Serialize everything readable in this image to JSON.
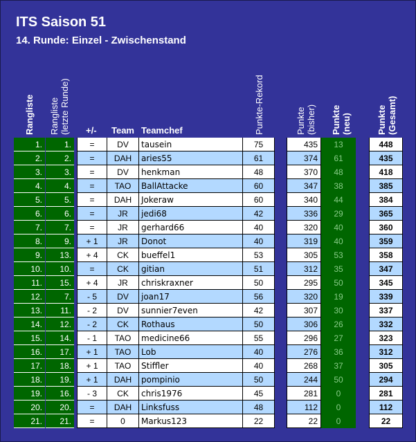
{
  "title": "ITS Saison 51",
  "subtitle": "14. Runde: Einzel - Zwischenstand",
  "headers": {
    "rangliste": "Rangliste",
    "rangliste_letzte": "Rangliste",
    "rangliste_letzte_sub": "(letzte Runde)",
    "plusminus": "+/-",
    "team": "Team",
    "teamchef": "Teamchef",
    "punkte_rekord": "Punkte-Rekord",
    "punkte_bisher": "Punkte",
    "punkte_bisher_sub": "(bisher)",
    "punkte_neu": "Punkte",
    "punkte_neu_sub": "(neu)",
    "punkte_gesamt": "Punkte",
    "punkte_gesamt_sub": "(Gesamt)"
  },
  "colors": {
    "background": "#333399",
    "green": "#006600",
    "row_blue": "#b3d9ff",
    "row_white": "#ffffff"
  },
  "rows": [
    {
      "rank": "1.",
      "prev": "1.",
      "change": "=",
      "team": "DV",
      "chef": "tausein",
      "record": "75",
      "prior": "435",
      "new": "13",
      "total": "448"
    },
    {
      "rank": "2.",
      "prev": "2.",
      "change": "=",
      "team": "DAH",
      "chef": "aries55",
      "record": "61",
      "prior": "374",
      "new": "61",
      "total": "435"
    },
    {
      "rank": "3.",
      "prev": "3.",
      "change": "=",
      "team": "DV",
      "chef": "henkman",
      "record": "48",
      "prior": "370",
      "new": "48",
      "total": "418"
    },
    {
      "rank": "4.",
      "prev": "4.",
      "change": "=",
      "team": "TAO",
      "chef": "BallAttacke",
      "record": "60",
      "prior": "347",
      "new": "38",
      "total": "385"
    },
    {
      "rank": "5.",
      "prev": "5.",
      "change": "=",
      "team": "DAH",
      "chef": "Jokeraw",
      "record": "60",
      "prior": "340",
      "new": "44",
      "total": "384"
    },
    {
      "rank": "6.",
      "prev": "6.",
      "change": "=",
      "team": "JR",
      "chef": "jedi68",
      "record": "42",
      "prior": "336",
      "new": "29",
      "total": "365"
    },
    {
      "rank": "7.",
      "prev": "7.",
      "change": "=",
      "team": "JR",
      "chef": "gerhard66",
      "record": "40",
      "prior": "320",
      "new": "40",
      "total": "360"
    },
    {
      "rank": "8.",
      "prev": "9.",
      "change": "+ 1",
      "team": "JR",
      "chef": "Donot",
      "record": "40",
      "prior": "319",
      "new": "40",
      "total": "359"
    },
    {
      "rank": "9.",
      "prev": "13.",
      "change": "+ 4",
      "team": "CK",
      "chef": "bueffel1",
      "record": "53",
      "prior": "305",
      "new": "53",
      "total": "358"
    },
    {
      "rank": "10.",
      "prev": "10.",
      "change": "=",
      "team": "CK",
      "chef": "gitian",
      "record": "51",
      "prior": "312",
      "new": "35",
      "total": "347"
    },
    {
      "rank": "11.",
      "prev": "15.",
      "change": "+ 4",
      "team": "JR",
      "chef": "chriskraxner",
      "record": "50",
      "prior": "295",
      "new": "50",
      "total": "345"
    },
    {
      "rank": "12.",
      "prev": "7.",
      "change": "- 5",
      "team": "DV",
      "chef": "joan17",
      "record": "56",
      "prior": "320",
      "new": "19",
      "total": "339"
    },
    {
      "rank": "13.",
      "prev": "11.",
      "change": "- 2",
      "team": "DV",
      "chef": "sunnier7even",
      "record": "42",
      "prior": "307",
      "new": "30",
      "total": "337"
    },
    {
      "rank": "14.",
      "prev": "12.",
      "change": "- 2",
      "team": "CK",
      "chef": "Rothaus",
      "record": "50",
      "prior": "306",
      "new": "26",
      "total": "332"
    },
    {
      "rank": "15.",
      "prev": "14.",
      "change": "- 1",
      "team": "TAO",
      "chef": "medicine66",
      "record": "55",
      "prior": "296",
      "new": "27",
      "total": "323"
    },
    {
      "rank": "16.",
      "prev": "17.",
      "change": "+ 1",
      "team": "TAO",
      "chef": "Lob",
      "record": "40",
      "prior": "276",
      "new": "36",
      "total": "312"
    },
    {
      "rank": "17.",
      "prev": "18.",
      "change": "+ 1",
      "team": "TAO",
      "chef": "Stiffler",
      "record": "40",
      "prior": "268",
      "new": "37",
      "total": "305"
    },
    {
      "rank": "18.",
      "prev": "19.",
      "change": "+ 1",
      "team": "DAH",
      "chef": "pompinio",
      "record": "50",
      "prior": "244",
      "new": "50",
      "total": "294"
    },
    {
      "rank": "19.",
      "prev": "16.",
      "change": "- 3",
      "team": "CK",
      "chef": "chris1976",
      "record": "45",
      "prior": "281",
      "new": "0",
      "total": "281"
    },
    {
      "rank": "20.",
      "prev": "20.",
      "change": "=",
      "team": "DAH",
      "chef": "Linksfuss",
      "record": "48",
      "prior": "112",
      "new": "0",
      "total": "112"
    },
    {
      "rank": "21.",
      "prev": "21.",
      "change": "=",
      "team": "0",
      "chef": "Markus123",
      "record": "22",
      "prior": "22",
      "new": "0",
      "total": "22"
    }
  ]
}
